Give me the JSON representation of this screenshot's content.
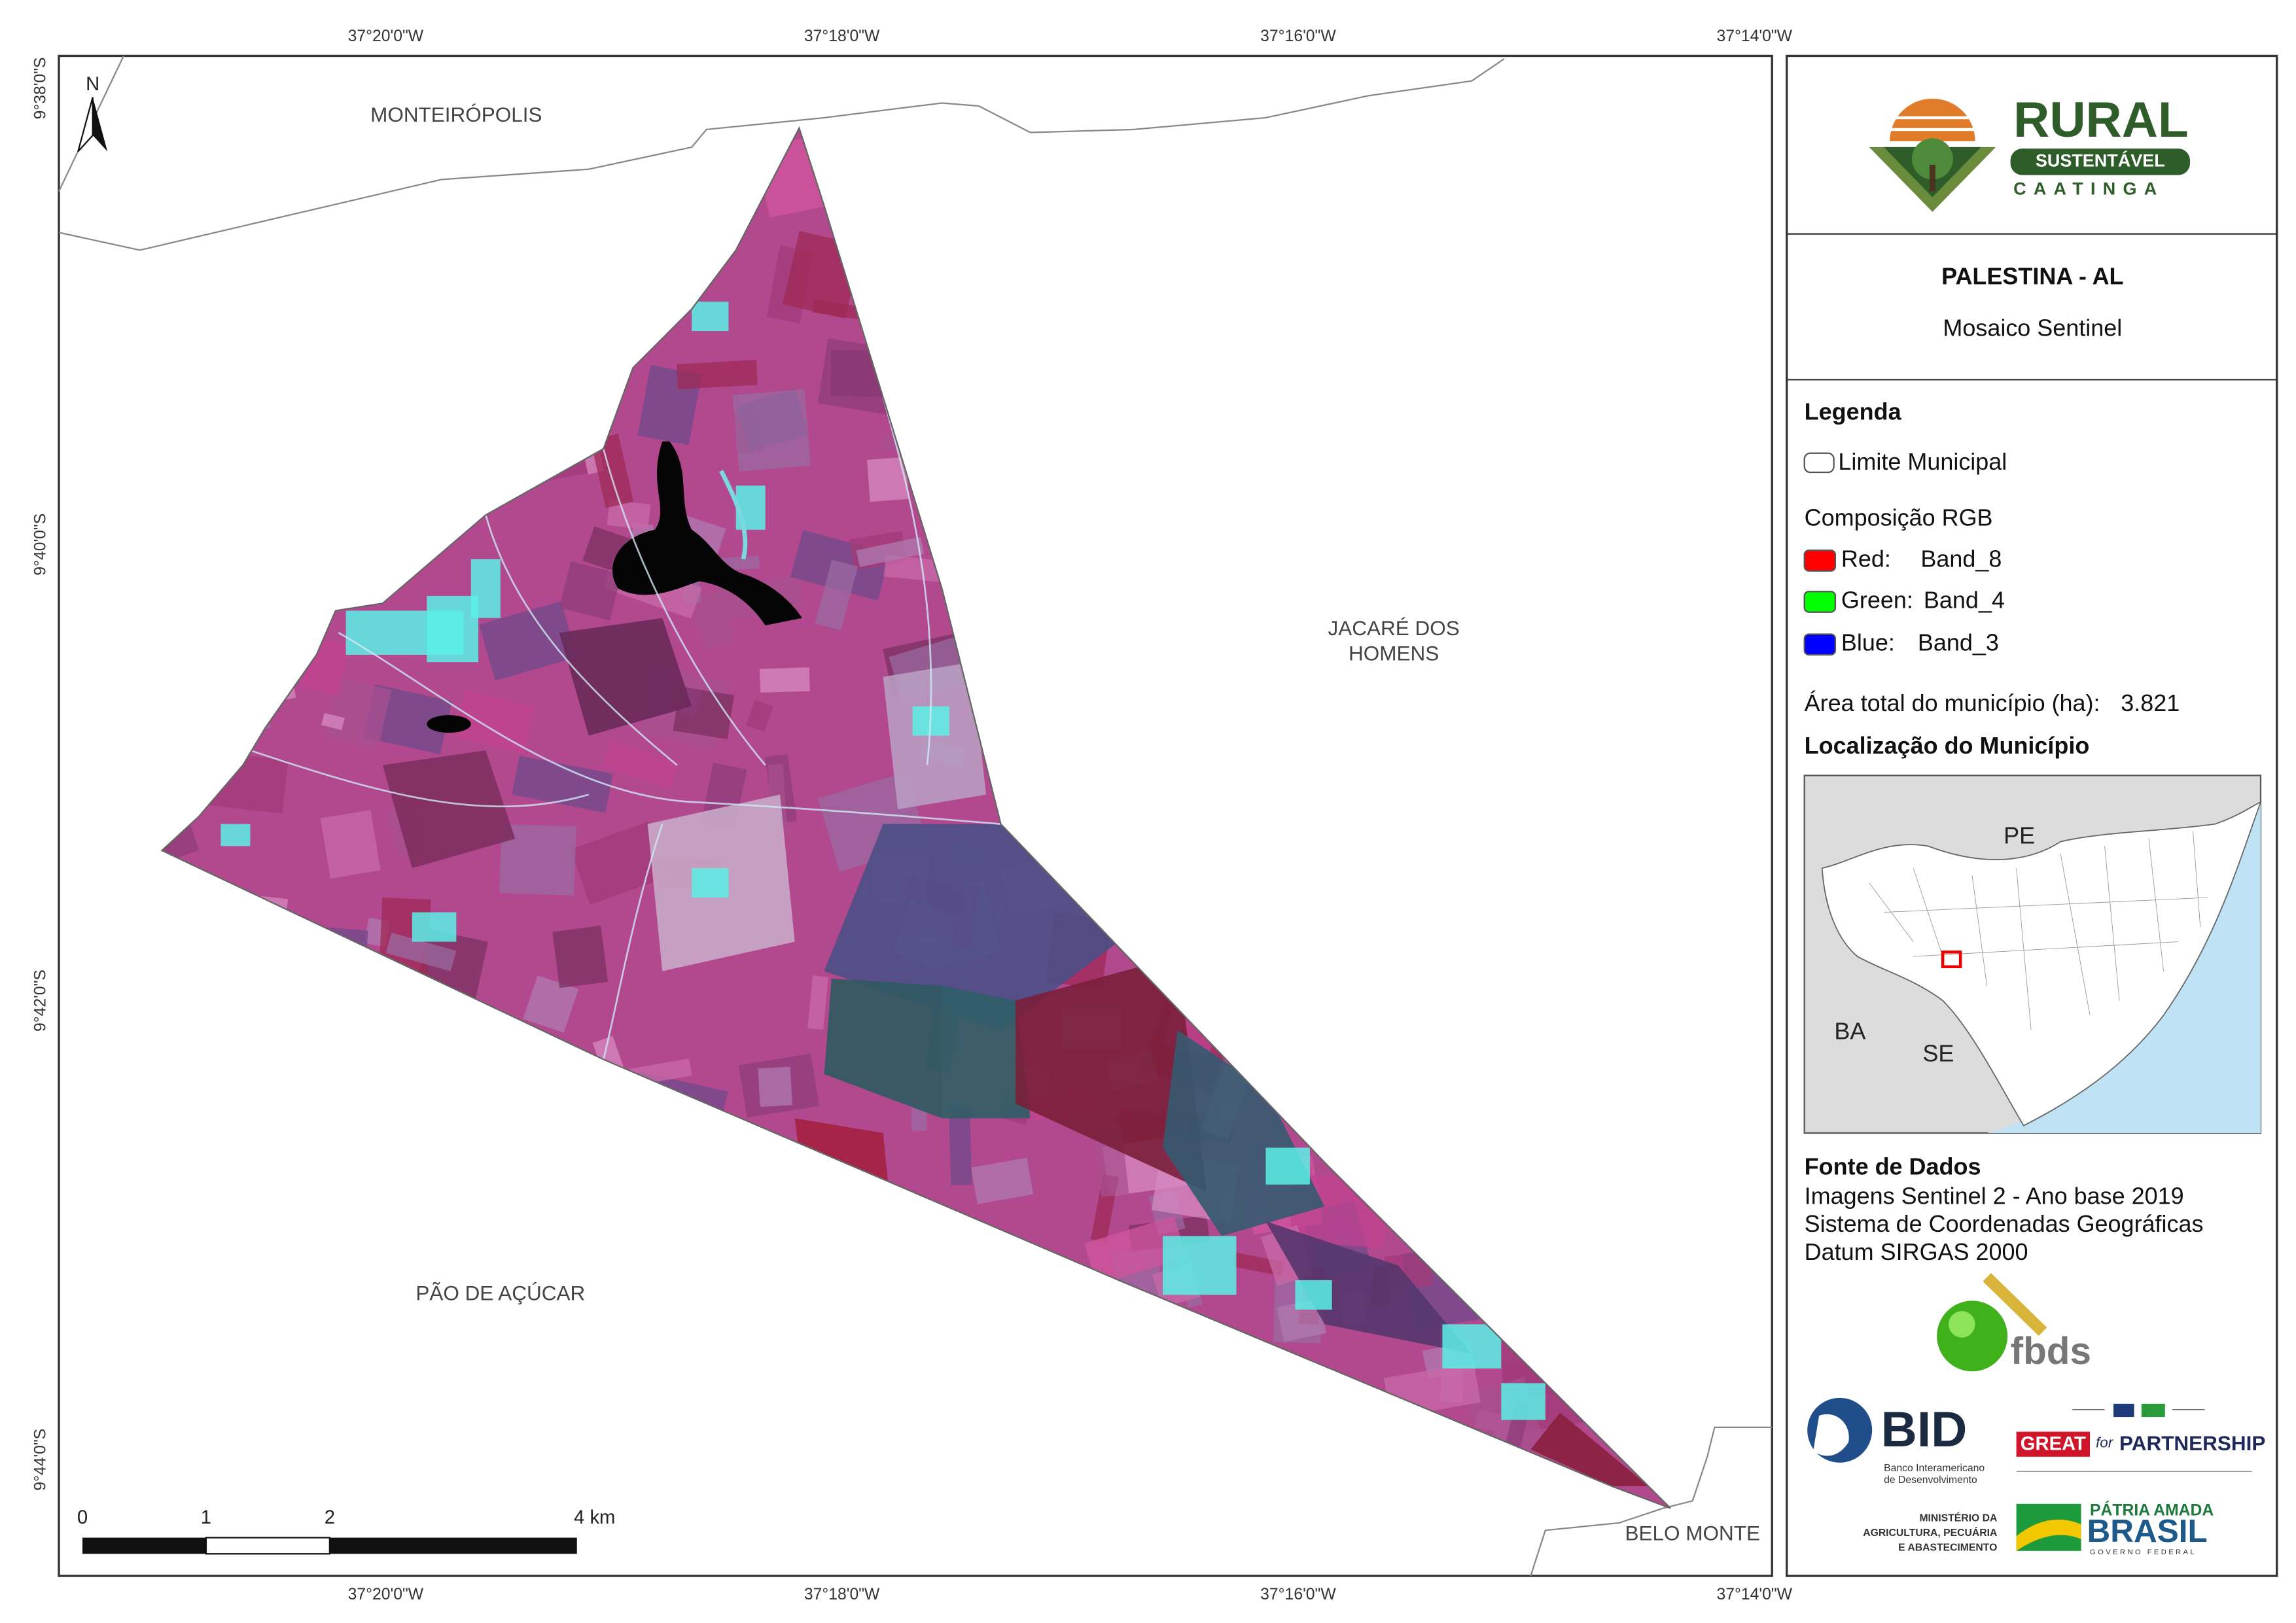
{
  "map": {
    "coordinates": {
      "top": [
        "37°20'0\"W",
        "37°18'0\"W",
        "37°16'0\"W",
        "37°14'0\"W"
      ],
      "bottom": [
        "37°20'0\"W",
        "37°18'0\"W",
        "37°16'0\"W",
        "37°14'0\"W"
      ],
      "left": [
        "9°38'0\"S",
        "9°40'0\"S",
        "9°42'0\"S",
        "9°44'0\"S"
      ]
    },
    "places": [
      "MONTEIRÓPOLIS",
      "JACARÉ DOS",
      "HOMENS",
      "PÃO DE AÇÚCAR",
      "BELO MONTE"
    ],
    "north": "N",
    "scale_bar": [
      "0",
      "1",
      "2",
      "4 km"
    ]
  },
  "panel": {
    "logo": {
      "line1": "RURAL",
      "line2": "SUSTENTÁVEL",
      "line3": "CAATINGA"
    },
    "title": "PALESTINA - AL",
    "subtitle": "Mosaico Sentinel",
    "legend": {
      "heading": "Legenda",
      "boundary": "Limite Municipal",
      "composition": "Composição RGB",
      "bands": [
        {
          "channel": "Red:",
          "band": "Band_8"
        },
        {
          "channel": "Green:",
          "band": "Band_4"
        },
        {
          "channel": "Blue:",
          "band": "Band_3"
        }
      ],
      "area_label": "Área total do município (ha):",
      "area_value": "3.821"
    },
    "location": {
      "heading": "Localização do Município",
      "labels": [
        "PE",
        "BA",
        "SE"
      ]
    },
    "sources": {
      "heading": "Fonte de Dados",
      "lines": [
        "Imagens Sentinel 2 - Ano base 2019",
        "Sistema de Coordenadas Geográficas",
        "Datum SIRGAS 2000"
      ]
    },
    "partners": {
      "fbds": "fbds",
      "bid": "BID",
      "bid_name": [
        "Banco Interamericano",
        "de Desenvolvimento"
      ],
      "great": "GREAT",
      "for": "for",
      "partnership": "PARTNERSHIP",
      "ministry": [
        "MINISTÉRIO DA",
        "AGRICULTURA, PECUÁRIA",
        "E ABASTECIMENTO"
      ],
      "brasil": [
        "PÁTRIA AMADA",
        "BRASIL",
        "GOVERNO FEDERAL"
      ]
    }
  }
}
